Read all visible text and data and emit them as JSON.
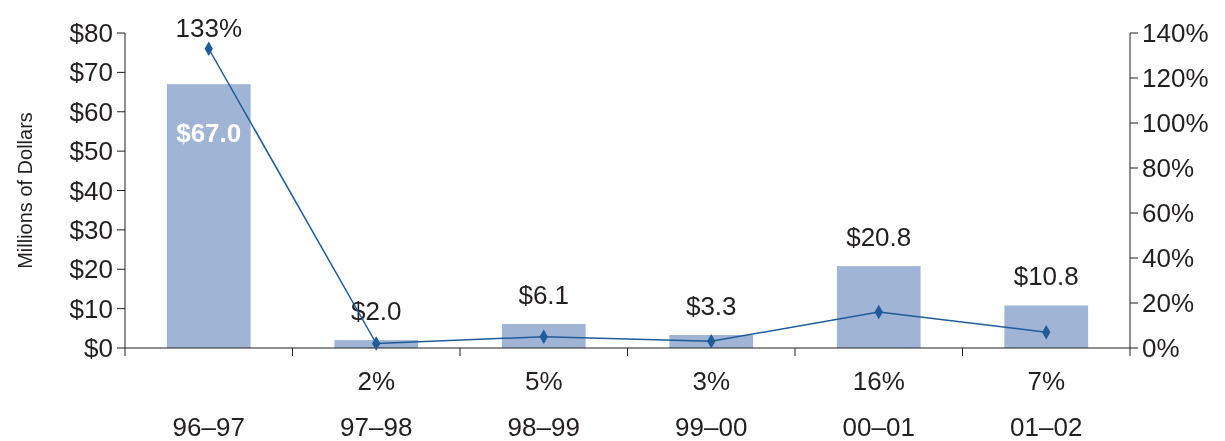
{
  "chart_data": {
    "type": "bar",
    "ylabel": "Millions of Dollars",
    "categories": [
      "96–97",
      "97–98",
      "98–99",
      "99–00",
      "00–01",
      "01–02"
    ],
    "series": [
      {
        "color": "#a0b4d6",
        "values": [
          67.0,
          2.0,
          6.1,
          3.3,
          20.8,
          10.8
        ],
        "value_labels": [
          "$67.0",
          "$2.0",
          "$6.1",
          "$3.3",
          "$20.8",
          "$10.8"
        ]
      },
      {
        "type": "line",
        "axis": "y2",
        "color": "#1f5c99",
        "marker": "diamond",
        "values": [
          133,
          2,
          5,
          3,
          16,
          7
        ],
        "value_labels": [
          "133%",
          "2%",
          "5%",
          "3%",
          "16%",
          "7%"
        ]
      }
    ],
    "ylim": [
      0,
      80
    ],
    "yticks": [
      {
        "value": 0,
        "label": "$0"
      },
      {
        "value": 10,
        "label": "$10"
      },
      {
        "value": 20,
        "label": "$20"
      },
      {
        "value": 30,
        "label": "$30"
      },
      {
        "value": 40,
        "label": "$40"
      },
      {
        "value": 50,
        "label": "$50"
      },
      {
        "value": 60,
        "label": "$60"
      },
      {
        "value": 70,
        "label": "$70"
      },
      {
        "value": 80,
        "label": "$80"
      }
    ],
    "y2lim": [
      0,
      140
    ],
    "y2ticks": [
      {
        "value": 0,
        "label": "0%"
      },
      {
        "value": 20,
        "label": "20%"
      },
      {
        "value": 40,
        "label": "40%"
      },
      {
        "value": 60,
        "label": "60%"
      },
      {
        "value": 80,
        "label": "80%"
      },
      {
        "value": 100,
        "label": "100%"
      },
      {
        "value": 120,
        "label": "120%"
      },
      {
        "value": 140,
        "label": "140%"
      }
    ],
    "grid": false
  }
}
